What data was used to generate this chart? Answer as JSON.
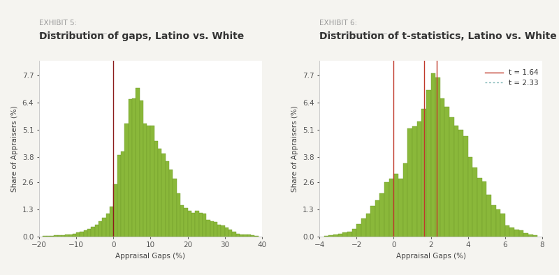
{
  "exhibit5": {
    "label": "EXHIBIT 5:",
    "title": "Distribution of gaps, Latino vs. White",
    "xlabel": "Appraisal Gaps (%)",
    "ylabel": "Share of Appraisers (%)",
    "xlim": [
      -20,
      40
    ],
    "ylim": [
      0,
      8.4
    ],
    "yticks": [
      0.0,
      1.3,
      2.6,
      3.8,
      5.1,
      6.4,
      7.7
    ],
    "xticks": [
      -20,
      -10,
      0,
      10,
      20,
      30,
      40
    ],
    "vline": 0,
    "bar_color": "#8ab83a",
    "bar_edge_color": "#6e9a28",
    "bin_width": 1,
    "bins_left": [
      -19,
      -18,
      -17,
      -16,
      -15,
      -14,
      -13,
      -12,
      -11,
      -10,
      -9,
      -8,
      -7,
      -6,
      -5,
      -4,
      -3,
      -2,
      -1,
      0,
      1,
      2,
      3,
      4,
      5,
      6,
      7,
      8,
      9,
      10,
      11,
      12,
      13,
      14,
      15,
      16,
      17,
      18,
      19,
      20,
      21,
      22,
      23,
      24,
      25,
      26,
      27,
      28,
      29,
      30,
      31,
      32,
      33,
      34,
      35,
      36,
      37,
      38
    ],
    "bar_heights": [
      0.02,
      0.02,
      0.04,
      0.05,
      0.06,
      0.07,
      0.08,
      0.1,
      0.13,
      0.18,
      0.22,
      0.28,
      0.35,
      0.45,
      0.55,
      0.72,
      0.9,
      1.1,
      1.42,
      2.5,
      3.9,
      4.05,
      5.4,
      6.55,
      6.6,
      7.1,
      6.5,
      5.4,
      5.3,
      5.3,
      4.55,
      4.2,
      3.95,
      3.6,
      3.2,
      2.75,
      2.05,
      1.5,
      1.35,
      1.22,
      1.12,
      1.22,
      1.12,
      1.1,
      0.78,
      0.72,
      0.68,
      0.55,
      0.52,
      0.42,
      0.32,
      0.22,
      0.12,
      0.1,
      0.1,
      0.08,
      0.05,
      0.04
    ]
  },
  "exhibit6": {
    "label": "EXHIBIT 6:",
    "title": "Distribution of t-statistics, Latino vs. White",
    "xlabel": "Appraisal Gaps (%)",
    "ylabel": "Share of Appraisers (%)",
    "xlim": [
      -4,
      8
    ],
    "ylim": [
      0,
      8.4
    ],
    "yticks": [
      0.0,
      1.3,
      2.6,
      3.8,
      5.1,
      6.4,
      7.7
    ],
    "xticks": [
      -4,
      -2,
      0,
      2,
      4,
      6,
      8
    ],
    "vlines": [
      0.0,
      1.64,
      2.33
    ],
    "legend_lines": [
      {
        "label": "t = 1.64",
        "color": "#c0392b",
        "linestyle": "-"
      },
      {
        "label": "t = 2.33",
        "color": "#88bbbb",
        "linestyle": ":"
      }
    ],
    "bar_color": "#8ab83a",
    "bar_edge_color": "#6e9a28",
    "bin_width": 0.25,
    "bins_left": [
      -3.75,
      -3.5,
      -3.25,
      -3.0,
      -2.75,
      -2.5,
      -2.25,
      -2.0,
      -1.75,
      -1.5,
      -1.25,
      -1.0,
      -0.75,
      -0.5,
      -0.25,
      0.0,
      0.25,
      0.5,
      0.75,
      1.0,
      1.25,
      1.5,
      1.75,
      2.0,
      2.25,
      2.5,
      2.75,
      3.0,
      3.25,
      3.5,
      3.75,
      4.0,
      4.25,
      4.5,
      4.75,
      5.0,
      5.25,
      5.5,
      5.75,
      6.0,
      6.25,
      6.5,
      6.75,
      7.0,
      7.25,
      7.5
    ],
    "bar_heights": [
      0.02,
      0.05,
      0.08,
      0.12,
      0.18,
      0.22,
      0.35,
      0.6,
      0.85,
      1.1,
      1.45,
      1.72,
      2.05,
      2.58,
      2.75,
      3.0,
      2.75,
      3.5,
      5.15,
      5.25,
      5.5,
      6.1,
      7.0,
      7.8,
      7.6,
      6.6,
      6.2,
      5.7,
      5.3,
      5.1,
      4.8,
      3.8,
      3.3,
      2.78,
      2.62,
      2.0,
      1.5,
      1.28,
      1.1,
      0.52,
      0.42,
      0.32,
      0.28,
      0.15,
      0.1,
      0.05
    ]
  },
  "bg_color": "#ffffff",
  "fig_bg_color": "#f5f4f0",
  "label_fontsize": 7.5,
  "title_fontsize": 10,
  "axis_fontsize": 7.5,
  "tick_fontsize": 7.5
}
